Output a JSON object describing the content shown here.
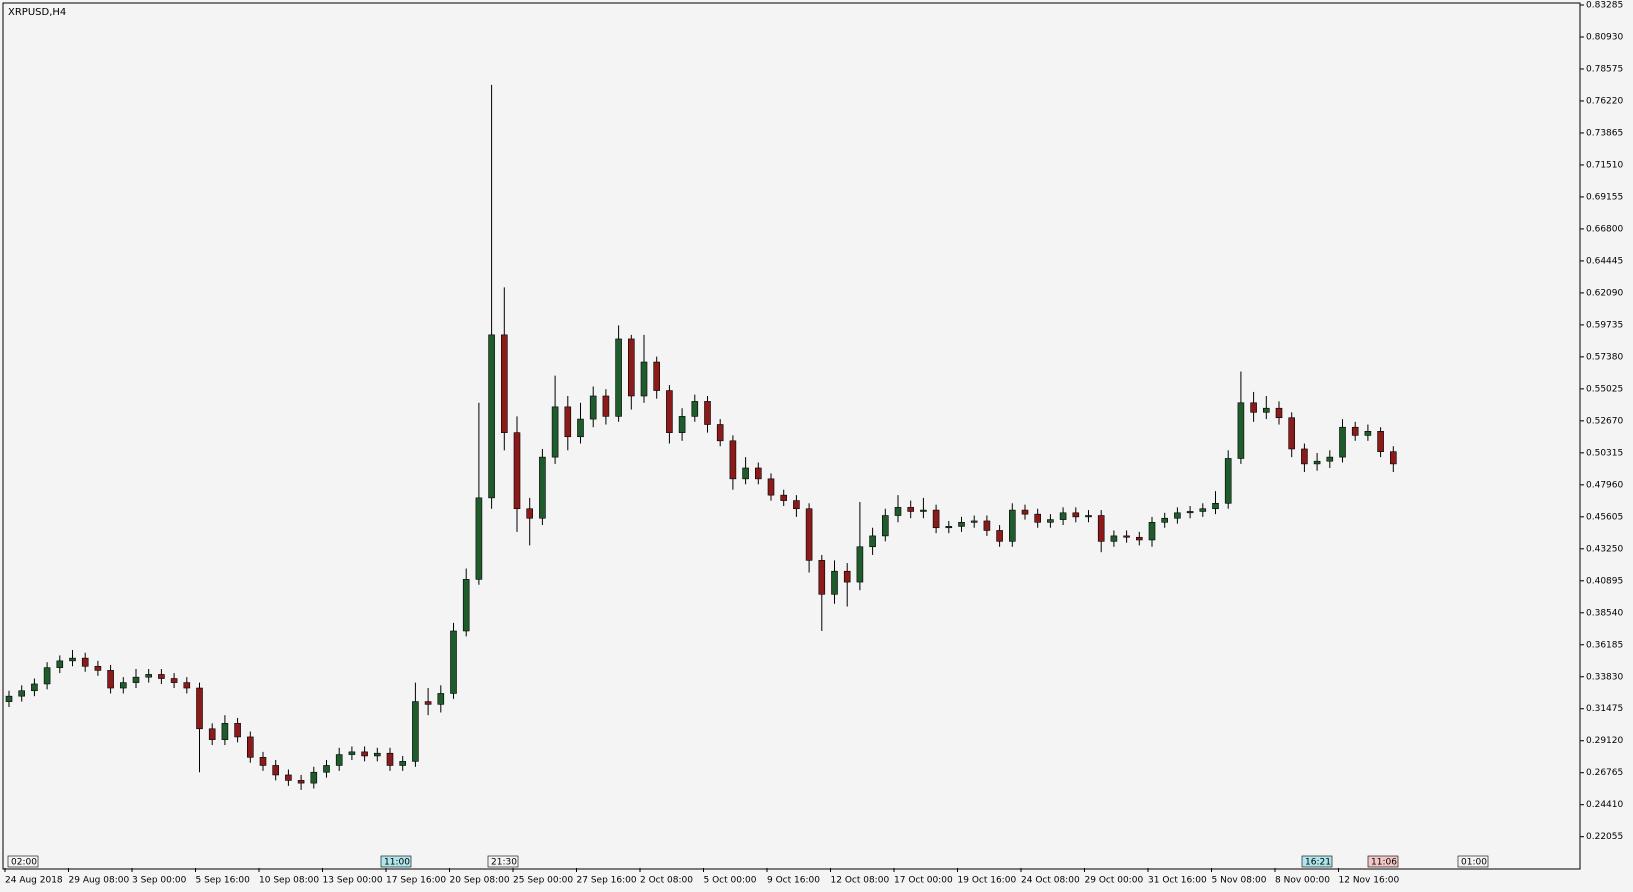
{
  "chart_data": {
    "type": "candlestick",
    "title": "XRPUSD,H4",
    "categories": [
      "24 Aug 2018",
      null,
      null,
      null,
      null,
      "29 Aug 08:00",
      null,
      null,
      null,
      null,
      "3 Sep 00:00",
      null,
      null,
      null,
      null,
      "5 Sep 16:00",
      null,
      null,
      null,
      null,
      "10 Sep 08:00",
      null,
      null,
      null,
      null,
      "13 Sep 00:00",
      null,
      null,
      null,
      null,
      "17 Sep 16:00",
      null,
      null,
      null,
      null,
      "20 Sep 08:00",
      null,
      null,
      null,
      null,
      "25 Sep 00:00",
      null,
      null,
      null,
      null,
      "27 Sep 16:00",
      null,
      null,
      null,
      null,
      "2 Oct 08:00",
      null,
      null,
      null,
      null,
      "5 Oct 00:00",
      null,
      null,
      null,
      null,
      "9 Oct 16:00",
      null,
      null,
      null,
      null,
      "12 Oct 08:00",
      null,
      null,
      null,
      null,
      "17 Oct 00:00",
      null,
      null,
      null,
      null,
      "19 Oct 16:00",
      null,
      null,
      null,
      null,
      "24 Oct 08:00",
      null,
      null,
      null,
      null,
      "29 Oct 00:00",
      null,
      null,
      null,
      null,
      "31 Oct 16:00",
      null,
      null,
      null,
      null,
      "5 Nov 08:00",
      null,
      null,
      null,
      null,
      "8 Nov 00:00",
      null,
      null,
      null,
      null,
      "12 Nov 16:00",
      null,
      null,
      null,
      null
    ],
    "open": [
      0.32,
      0.324,
      0.328,
      0.333,
      0.345,
      0.35,
      0.352,
      0.346,
      0.343,
      0.33,
      0.334,
      0.338,
      0.34,
      0.337,
      0.334,
      0.33,
      0.3,
      0.292,
      0.304,
      0.294,
      0.279,
      0.273,
      0.266,
      0.262,
      0.26,
      0.268,
      0.273,
      0.281,
      0.283,
      0.28,
      0.282,
      0.273,
      0.276,
      0.32,
      0.318,
      0.326,
      0.372,
      0.41,
      0.47,
      0.59,
      0.518,
      0.462,
      0.455,
      0.5,
      0.537,
      0.515,
      0.528,
      0.545,
      0.53,
      0.587,
      0.545,
      0.57,
      0.549,
      0.518,
      0.53,
      0.541,
      0.524,
      0.512,
      0.484,
      0.492,
      0.484,
      0.472,
      0.468,
      0.462,
      0.424,
      0.399,
      0.416,
      0.408,
      0.434,
      0.442,
      0.457,
      0.463,
      0.46,
      0.461,
      0.448,
      0.449,
      0.452,
      0.453,
      0.446,
      0.438,
      0.461,
      0.458,
      0.452,
      0.454,
      0.459,
      0.456,
      0.457,
      0.438,
      0.442,
      0.441,
      0.439,
      0.452,
      0.455,
      0.459,
      0.46,
      0.462,
      0.466,
      0.499,
      0.54,
      0.533,
      0.536,
      0.529,
      0.506,
      0.495,
      0.497,
      0.5,
      0.522,
      0.516,
      0.519,
      0.504
    ],
    "high": [
      0.328,
      0.332,
      0.337,
      0.349,
      0.354,
      0.358,
      0.356,
      0.35,
      0.347,
      0.338,
      0.344,
      0.344,
      0.344,
      0.341,
      0.338,
      0.334,
      0.304,
      0.31,
      0.308,
      0.298,
      0.283,
      0.277,
      0.27,
      0.266,
      0.272,
      0.277,
      0.286,
      0.287,
      0.287,
      0.286,
      0.286,
      0.28,
      0.334,
      0.33,
      0.332,
      0.378,
      0.418,
      0.54,
      0.774,
      0.625,
      0.53,
      0.47,
      0.506,
      0.56,
      0.545,
      0.54,
      0.552,
      0.55,
      0.597,
      0.59,
      0.59,
      0.574,
      0.553,
      0.536,
      0.546,
      0.545,
      0.528,
      0.516,
      0.5,
      0.496,
      0.488,
      0.476,
      0.472,
      0.466,
      0.428,
      0.424,
      0.422,
      0.467,
      0.448,
      0.462,
      0.472,
      0.468,
      0.47,
      0.465,
      0.453,
      0.456,
      0.457,
      0.457,
      0.45,
      0.466,
      0.465,
      0.462,
      0.458,
      0.463,
      0.463,
      0.461,
      0.461,
      0.446,
      0.446,
      0.445,
      0.456,
      0.459,
      0.463,
      0.464,
      0.466,
      0.475,
      0.505,
      0.563,
      0.548,
      0.545,
      0.541,
      0.533,
      0.51,
      0.503,
      0.505,
      0.528,
      0.526,
      0.524,
      0.522,
      0.508
    ],
    "low": [
      0.316,
      0.32,
      0.324,
      0.329,
      0.341,
      0.346,
      0.342,
      0.339,
      0.326,
      0.326,
      0.33,
      0.334,
      0.333,
      0.33,
      0.326,
      0.268,
      0.288,
      0.288,
      0.29,
      0.275,
      0.269,
      0.262,
      0.258,
      0.255,
      0.256,
      0.264,
      0.269,
      0.277,
      0.276,
      0.276,
      0.269,
      0.269,
      0.272,
      0.31,
      0.312,
      0.322,
      0.368,
      0.406,
      0.462,
      0.505,
      0.445,
      0.435,
      0.45,
      0.495,
      0.505,
      0.51,
      0.522,
      0.524,
      0.526,
      0.535,
      0.54,
      0.543,
      0.51,
      0.512,
      0.526,
      0.518,
      0.508,
      0.476,
      0.48,
      0.48,
      0.468,
      0.464,
      0.456,
      0.415,
      0.372,
      0.392,
      0.39,
      0.402,
      0.428,
      0.438,
      0.452,
      0.455,
      0.455,
      0.444,
      0.444,
      0.445,
      0.448,
      0.442,
      0.434,
      0.434,
      0.454,
      0.448,
      0.448,
      0.45,
      0.452,
      0.452,
      0.43,
      0.434,
      0.437,
      0.435,
      0.434,
      0.448,
      0.451,
      0.455,
      0.456,
      0.458,
      0.462,
      0.495,
      0.526,
      0.528,
      0.524,
      0.5,
      0.489,
      0.49,
      0.492,
      0.496,
      0.512,
      0.512,
      0.5,
      0.489
    ],
    "close": [
      0.324,
      0.328,
      0.333,
      0.345,
      0.35,
      0.352,
      0.346,
      0.343,
      0.33,
      0.334,
      0.338,
      0.34,
      0.337,
      0.334,
      0.33,
      0.3,
      0.292,
      0.304,
      0.294,
      0.279,
      0.273,
      0.266,
      0.262,
      0.26,
      0.268,
      0.273,
      0.281,
      0.283,
      0.28,
      0.282,
      0.273,
      0.276,
      0.32,
      0.318,
      0.326,
      0.372,
      0.41,
      0.47,
      0.59,
      0.518,
      0.462,
      0.455,
      0.5,
      0.537,
      0.515,
      0.528,
      0.545,
      0.53,
      0.587,
      0.545,
      0.57,
      0.549,
      0.518,
      0.53,
      0.541,
      0.524,
      0.512,
      0.484,
      0.492,
      0.484,
      0.472,
      0.468,
      0.462,
      0.424,
      0.399,
      0.416,
      0.408,
      0.434,
      0.442,
      0.457,
      0.463,
      0.46,
      0.461,
      0.448,
      0.449,
      0.452,
      0.453,
      0.446,
      0.438,
      0.461,
      0.458,
      0.452,
      0.454,
      0.459,
      0.456,
      0.457,
      0.438,
      0.442,
      0.441,
      0.439,
      0.452,
      0.455,
      0.459,
      0.46,
      0.462,
      0.466,
      0.499,
      0.54,
      0.533,
      0.536,
      0.529,
      0.506,
      0.495,
      0.497,
      0.5,
      0.522,
      0.516,
      0.519,
      0.504,
      0.495
    ],
    "up_color": "#1f5c2c",
    "down_color": "#8b1a1a",
    "wick_color": "#000000",
    "ylim": [
      0.1975,
      0.83285
    ],
    "yticks": [
      0.83285,
      {
        "value": 0.8093,
        "label": "0.80930"
      },
      0.78575,
      {
        "value": 0.7622,
        "label": "0.76220"
      },
      0.73865,
      {
        "value": 0.7151,
        "label": "0.71510"
      },
      0.69155,
      {
        "value": 0.668,
        "label": "0.66800"
      },
      0.64445,
      {
        "value": 0.6209,
        "label": "0.62090"
      },
      0.59735,
      {
        "value": 0.5738,
        "label": "0.57380"
      },
      0.55025,
      {
        "value": 0.5267,
        "label": "0.52670"
      },
      0.50315,
      {
        "value": 0.4796,
        "label": "0.47960"
      },
      0.45605,
      {
        "value": 0.4325,
        "label": "0.43250"
      },
      0.40895,
      {
        "value": 0.3854,
        "label": "0.38540"
      },
      0.36185,
      {
        "value": 0.3383,
        "label": "0.33830"
      },
      0.31475,
      {
        "value": 0.2912,
        "label": "0.29120"
      },
      0.26765,
      {
        "value": 0.2441,
        "label": "0.24410"
      },
      0.22055
    ],
    "time_markers": [
      "02:00",
      "11:00",
      "21:30",
      "16:21",
      "11:06",
      "01:00"
    ]
  }
}
